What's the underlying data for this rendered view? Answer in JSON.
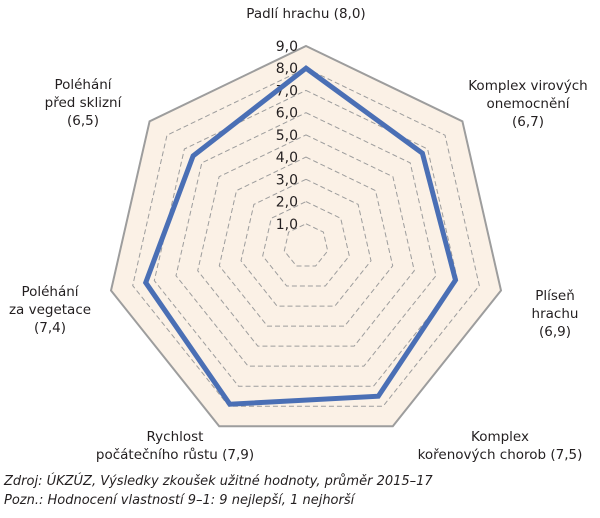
{
  "chart_data": {
    "type": "radar",
    "title": "",
    "axes": [
      "Padlí hrachu",
      "Komplex virových onemocnění",
      "Plíseň hrachu",
      "Komplex kořenových chorob",
      "Rychlost počátečního růstu",
      "Poléhání za vegetace",
      "Poléhání před sklizní"
    ],
    "series": [
      {
        "name": "Hodnocení",
        "values": [
          8.0,
          6.7,
          6.9,
          7.5,
          7.9,
          7.4,
          6.5
        ],
        "color": "#4a6fb5"
      }
    ],
    "ticks": [
      "1,0",
      "2,0",
      "3,0",
      "4,0",
      "5,0",
      "6,0",
      "7,0",
      "8,0",
      "9,0"
    ],
    "range": [
      0,
      9
    ],
    "grid": "dashed heptagons",
    "fill_color": "#fbf1e6",
    "border_color": "#9d9d9d"
  },
  "labels": {
    "padli": {
      "lines": [
        "Padlí hrachu (8,0)"
      ]
    },
    "virove": {
      "lines": [
        "Komplex virových",
        "onemocnění",
        "(6,7)"
      ]
    },
    "plisen": {
      "lines": [
        "Plíseň",
        "hrachu",
        "(6,9)"
      ]
    },
    "korenove": {
      "lines": [
        "Komplex",
        "kořenových chorob (7,5)"
      ]
    },
    "rychlost": {
      "lines": [
        "Rychlost",
        "počátečního růstu (7,9)"
      ]
    },
    "vegetace": {
      "lines": [
        "Poléhání",
        "za vegetace",
        "(7,4)"
      ]
    },
    "sklizen": {
      "lines": [
        "Poléhání",
        "před sklizní",
        "(6,5)"
      ]
    }
  },
  "footer": {
    "source": "Zdroj: ÚKZÚZ, Výsledky zkoušek užitné hodnoty, průměr 2015–17",
    "note": "Pozn.: Hodnocení vlastností 9–1: 9 nejlepší, 1 nejhorší"
  }
}
